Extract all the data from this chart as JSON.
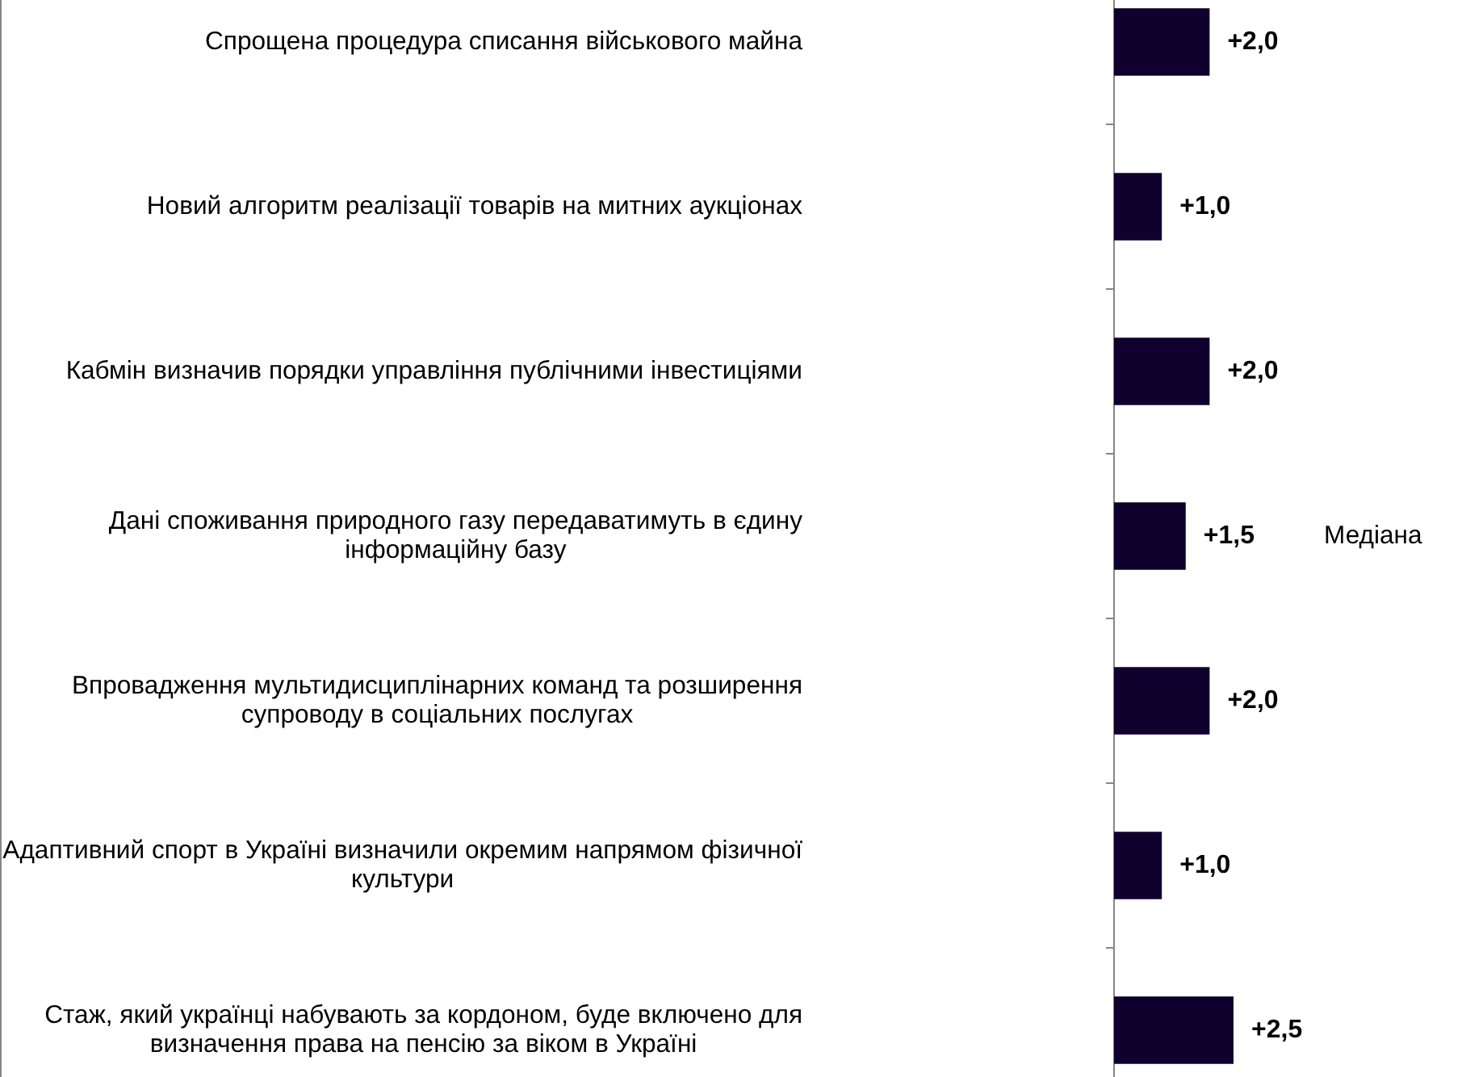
{
  "chart_data": {
    "type": "bar",
    "orientation": "horizontal",
    "categories": [
      "Спрощена процедура списання військового майна",
      "Новий алгоритм реалізації товарів на митних аукціонах",
      "Кабмін визначив порядки управління публічними інвестиціями",
      "Дані споживання природного газу передаватимуть в єдину інформаційну базу",
      "Впровадження мультидисциплінарних команд та розширення супроводу в соціальних послугах",
      "Адаптивний спорт в Україні визначили окремим напрямом фізичної культури",
      "Стаж, який українці набувають за кордоном, буде включено для визначення права на пенсію за віком в Україні"
    ],
    "series": [
      {
        "name": "Медіана",
        "color": "#10002e",
        "values": [
          2,
          1,
          2,
          1.5,
          2,
          1,
          2.5
        ],
        "value_labels": [
          "+2,0",
          "+1,0",
          "+2,0",
          "+1,5",
          "+2,0",
          "+1,0",
          "+2,5"
        ]
      }
    ],
    "tick_labels": "y",
    "legend": "right"
  }
}
